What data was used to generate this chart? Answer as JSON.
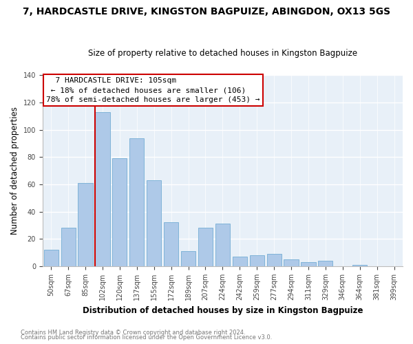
{
  "title": "7, HARDCASTLE DRIVE, KINGSTON BAGPUIZE, ABINGDON, OX13 5GS",
  "subtitle": "Size of property relative to detached houses in Kingston Bagpuize",
  "xlabel": "Distribution of detached houses by size in Kingston Bagpuize",
  "ylabel": "Number of detached properties",
  "bar_labels": [
    "50sqm",
    "67sqm",
    "85sqm",
    "102sqm",
    "120sqm",
    "137sqm",
    "155sqm",
    "172sqm",
    "189sqm",
    "207sqm",
    "224sqm",
    "242sqm",
    "259sqm",
    "277sqm",
    "294sqm",
    "311sqm",
    "329sqm",
    "346sqm",
    "364sqm",
    "381sqm",
    "399sqm"
  ],
  "bar_values": [
    12,
    28,
    61,
    113,
    79,
    94,
    63,
    32,
    11,
    28,
    31,
    7,
    8,
    9,
    5,
    3,
    4,
    0,
    1,
    0,
    0
  ],
  "bar_color": "#aec9e8",
  "bar_edge_color": "#7fb3d8",
  "vline_color": "#cc0000",
  "ylim": [
    0,
    140
  ],
  "yticks": [
    0,
    20,
    40,
    60,
    80,
    100,
    120,
    140
  ],
  "annotation_title": "7 HARDCASTLE DRIVE: 105sqm",
  "annotation_line1": "← 18% of detached houses are smaller (106)",
  "annotation_line2": "78% of semi-detached houses are larger (453) →",
  "annotation_box_color": "#ffffff",
  "annotation_box_edge": "#cc0000",
  "footer1": "Contains HM Land Registry data © Crown copyright and database right 2024.",
  "footer2": "Contains public sector information licensed under the Open Government Licence v3.0.",
  "fig_background": "#ffffff",
  "ax_background": "#e8f0f8",
  "grid_color": "#ffffff",
  "title_fontsize": 10,
  "subtitle_fontsize": 9,
  "highlight_index": 3
}
